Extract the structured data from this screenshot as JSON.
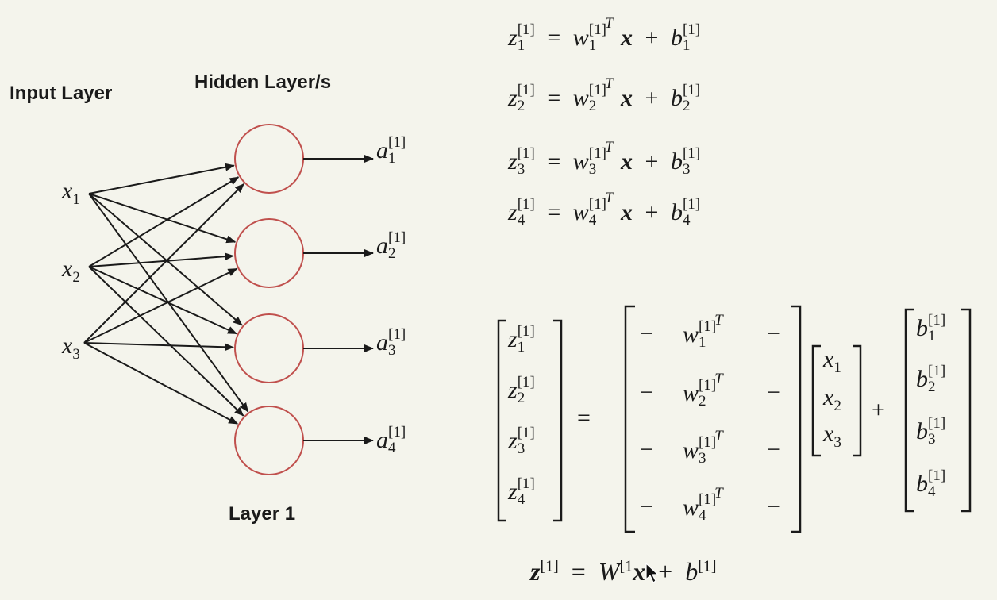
{
  "labels": {
    "input_layer": "Input Layer",
    "hidden_layer": "Hidden Layer/s",
    "layer_1": "Layer 1"
  },
  "inputs": [
    {
      "base": "x",
      "sub": "1"
    },
    {
      "base": "x",
      "sub": "2"
    },
    {
      "base": "x",
      "sub": "3"
    }
  ],
  "outputs": [
    {
      "base": "a",
      "sup": "[1]",
      "sub": "1"
    },
    {
      "base": "a",
      "sup": "[1]",
      "sub": "2"
    },
    {
      "base": "a",
      "sup": "[1]",
      "sub": "3"
    },
    {
      "base": "a",
      "sup": "[1]",
      "sub": "4"
    }
  ],
  "equations": [
    {
      "lhs": "z",
      "idx": "1",
      "layer": "[1]",
      "w": "w",
      "T": "T",
      "x": "x",
      "plus": "+",
      "b": "b",
      "eq": "="
    },
    {
      "lhs": "z",
      "idx": "2",
      "layer": "[1]",
      "w": "w",
      "T": "T",
      "x": "x",
      "plus": "+",
      "b": "b",
      "eq": "="
    },
    {
      "lhs": "z",
      "idx": "3",
      "layer": "[1]",
      "w": "w",
      "T": "T",
      "x": "x",
      "plus": "+",
      "b": "b",
      "eq": "="
    },
    {
      "lhs": "z",
      "idx": "4",
      "layer": "[1]",
      "w": "w",
      "T": "T",
      "x": "x",
      "plus": "+",
      "b": "b",
      "eq": "="
    }
  ],
  "matrix": {
    "equals": "=",
    "plus": "+",
    "dash": "−",
    "z_entries": [
      "1",
      "2",
      "3",
      "4"
    ],
    "w_entries": [
      "1",
      "2",
      "3",
      "4"
    ],
    "x_entries": [
      "1",
      "2",
      "3"
    ],
    "b_entries": [
      "1",
      "2",
      "3",
      "4"
    ],
    "layer": "[1]",
    "T": "T"
  },
  "vector_equation": {
    "z": "z",
    "layer": "[1]",
    "eq": "=",
    "W": "W",
    "W_sup_visible": "[1",
    "x": "x",
    "plus": "+",
    "b": "b"
  },
  "colors": {
    "background": "#f4f4ec",
    "neuron_stroke": "#c0504d",
    "ink": "#1a1a1a"
  }
}
